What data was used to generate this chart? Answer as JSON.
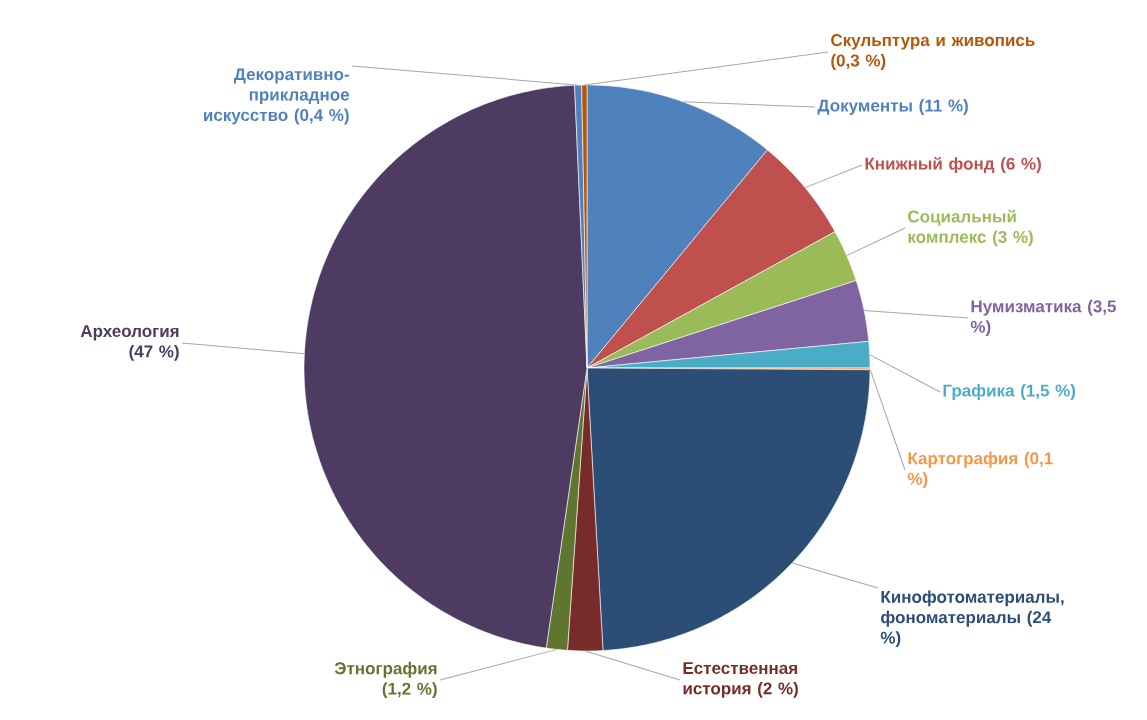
{
  "chart_data": {
    "type": "pie",
    "categories": [
      "Документы",
      "Книжный фонд",
      "Социальный комплекс",
      "Нумизматика",
      "Графика",
      "Картография",
      "Кинофотоматериалы, фономатериалы",
      "Естественная история",
      "Этнография",
      "Археология",
      "Декоративно-прикладное искусство",
      "Скульптура и живопись"
    ],
    "values": [
      11,
      6,
      3,
      3.5,
      1.5,
      0.1,
      24,
      2,
      1.2,
      47,
      0.4,
      0.3
    ],
    "value_labels": [
      "(11 %)",
      "(6 %)",
      "(3 %)",
      "(3,5 %)",
      "(1,5 %)",
      "(0,1 %)",
      "(24 %)",
      "(2 %)",
      "(1,2 %)",
      "(47 %)",
      "(0,4 %)",
      "(0,3 %)"
    ],
    "colors": [
      "#4f81bd",
      "#c0504d",
      "#9bbb59",
      "#8064a2",
      "#4bacc6",
      "#f79646",
      "#2c4d75",
      "#772c2a",
      "#5f7530",
      "#4d3b62",
      "#4f81bd",
      "#b65708"
    ]
  }
}
